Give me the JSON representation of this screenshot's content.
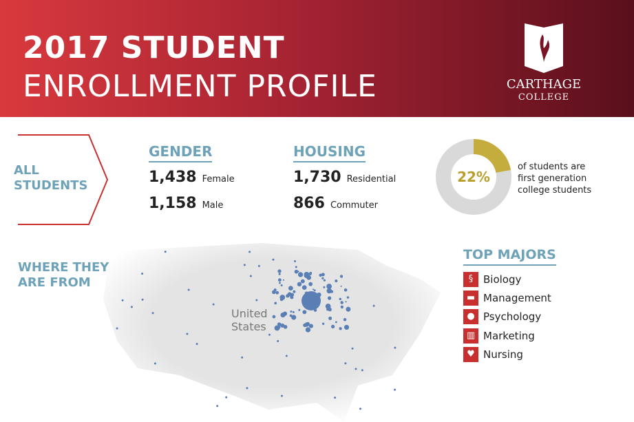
{
  "header": {
    "title_line1": "2017 STUDENT",
    "title_line2": "ENROLLMENT PROFILE",
    "logo_line1": "CARTHAGE",
    "logo_line2": "COLLEGE"
  },
  "all_students": {
    "line1": "ALL",
    "line2": "STUDENTS"
  },
  "gender": {
    "heading": "GENDER",
    "female_count": "1,438",
    "female_label": "Female",
    "male_count": "1,158",
    "male_label": "Male"
  },
  "housing": {
    "heading": "HOUSING",
    "residential_count": "1,730",
    "residential_label": "Residential",
    "commuter_count": "866",
    "commuter_label": "Commuter"
  },
  "first_gen": {
    "percent": 22,
    "percent_label": "22%",
    "line1": "of students are",
    "line2": "first generation",
    "line3": "college students",
    "colors": {
      "fill": "#c4ad3c",
      "rest": "#d9d9d9"
    }
  },
  "map": {
    "heading_line1": "WHERE THEY",
    "heading_line2": "ARE FROM",
    "country_line1": "United",
    "country_line2": "States"
  },
  "majors": {
    "heading": "TOP MAJORS",
    "items": [
      {
        "label": "Biology",
        "icon": "dna-icon"
      },
      {
        "label": "Management",
        "icon": "briefcase-icon"
      },
      {
        "label": "Psychology",
        "icon": "head-icon"
      },
      {
        "label": "Marketing",
        "icon": "chart-icon"
      },
      {
        "label": "Nursing",
        "icon": "heart-icon"
      }
    ]
  }
}
